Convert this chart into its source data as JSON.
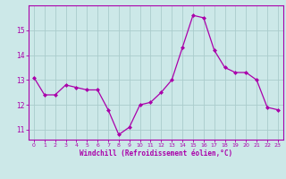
{
  "xlabel": "Windchill (Refroidissement éolien,°C)",
  "ylabel": "",
  "background_color": "#cce8e8",
  "line_color": "#aa00aa",
  "grid_color": "#aacccc",
  "xlim": [
    -0.5,
    23.5
  ],
  "ylim": [
    10.6,
    16.0
  ],
  "yticks": [
    11,
    12,
    13,
    14,
    15
  ],
  "xticks": [
    0,
    1,
    2,
    3,
    4,
    5,
    6,
    7,
    8,
    9,
    10,
    11,
    12,
    13,
    14,
    15,
    16,
    17,
    18,
    19,
    20,
    21,
    22,
    23
  ],
  "hours": [
    0,
    1,
    2,
    3,
    4,
    5,
    6,
    7,
    8,
    9,
    10,
    11,
    12,
    13,
    14,
    15,
    16,
    17,
    18,
    19,
    20,
    21,
    22,
    23
  ],
  "values": [
    13.1,
    12.4,
    12.4,
    12.8,
    12.7,
    12.6,
    12.6,
    11.8,
    10.8,
    11.1,
    12.0,
    12.1,
    12.5,
    13.0,
    14.3,
    15.6,
    15.5,
    14.2,
    13.5,
    13.3,
    13.3,
    13.0,
    11.9,
    11.8
  ]
}
